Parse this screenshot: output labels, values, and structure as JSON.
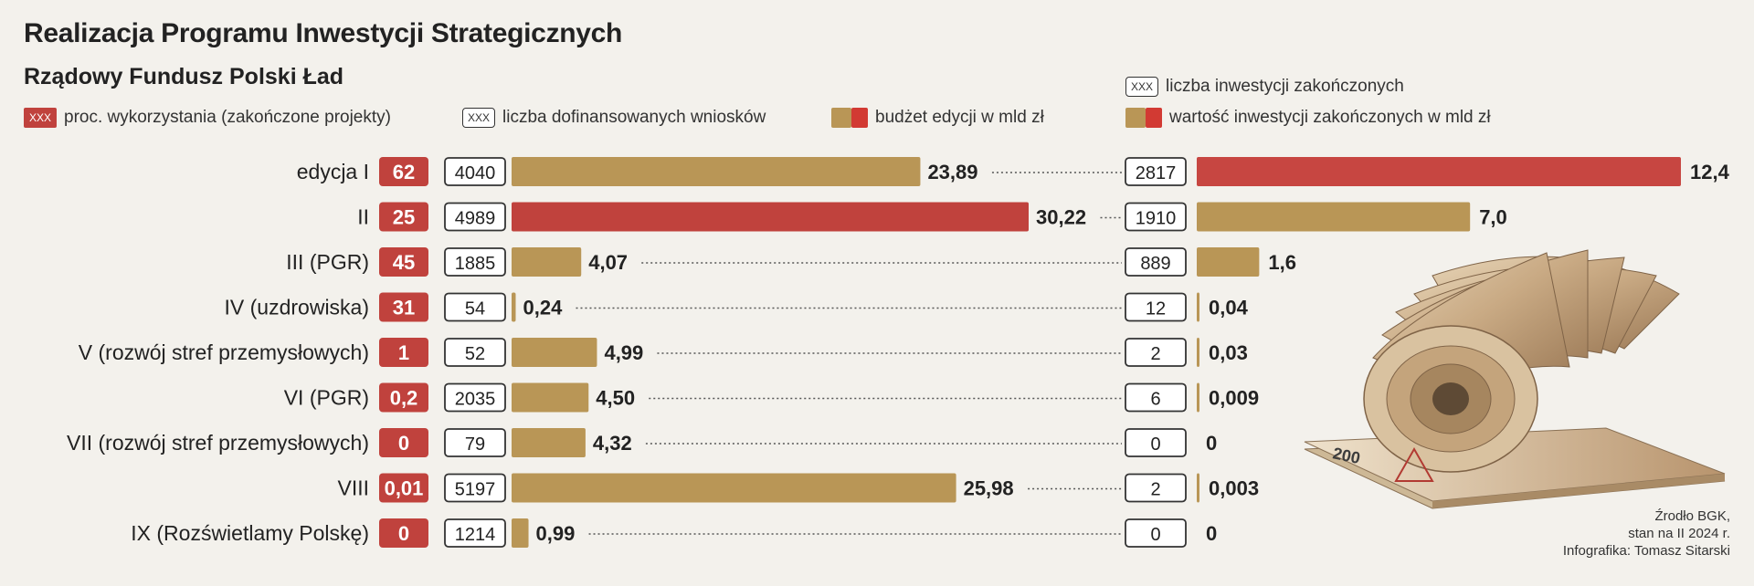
{
  "title": "Realizacja Programu Inwestycji Strategicznych",
  "subtitle": "Rządowy Fundusz Polski Ład",
  "legend": {
    "pct_badge": "XXX",
    "pct_label": "proc. wykorzystania (zakończone projekty)",
    "apps_badge": "XXX",
    "apps_label": "liczba dofinansowanych wniosków",
    "budget_label": "budżet edycji w mld zł",
    "completed_badge": "XXX",
    "completed_label": "liczba inwestycji zakończonych",
    "completed_value_label": "wartość inwestycji zakończonych w mld zł"
  },
  "source": {
    "line1": "Źrodło BGK,",
    "line2": "stan na II 2024 r.",
    "line3": "Infografika: Tomasz Sitarski"
  },
  "colors": {
    "red": "#c0423d",
    "gold": "#b99656",
    "budget_red": "#c0423d",
    "completed_red": "#c74641"
  },
  "chart_data": {
    "type": "bar",
    "categories": [
      "edycja I",
      "II",
      "III (PGR)",
      "IV (uzdrowiska)",
      "V (rozwój stref przemysłowych)",
      "VI (PGR)",
      "VII (rozwój stref przemysłowych)",
      "VIII",
      "IX (Rozświetlamy Polskę)"
    ],
    "pct_used": [
      "62",
      "25",
      "45",
      "31",
      "1",
      "0,2",
      "0",
      "0,01",
      "0"
    ],
    "applications": [
      "4040",
      "4989",
      "1885",
      "54",
      "52",
      "2035",
      "79",
      "5197",
      "1214"
    ],
    "budget_values": [
      23.89,
      30.22,
      4.07,
      0.24,
      4.99,
      4.5,
      4.32,
      25.98,
      0.99
    ],
    "budget_labels": [
      "23,89",
      "30,22",
      "4,07",
      "0,24",
      "4,99",
      "4,50",
      "4,32",
      "25,98",
      "0,99"
    ],
    "budget_highlight": [
      false,
      true,
      false,
      false,
      false,
      false,
      false,
      false,
      false
    ],
    "completed_counts": [
      "2817",
      "1910",
      "889",
      "12",
      "2",
      "6",
      "0",
      "2",
      "0"
    ],
    "completed_values": [
      12.4,
      7.0,
      1.6,
      0.04,
      0.03,
      0.009,
      0,
      0.003,
      0
    ],
    "completed_labels": [
      "12,4",
      "7,0",
      "1,6",
      "0,04",
      "0,03",
      "0,009",
      "0",
      "0,003",
      "0"
    ],
    "completed_highlight": [
      true,
      false,
      false,
      false,
      false,
      false,
      false,
      false,
      false
    ],
    "budget_max": 30.22,
    "completed_max": 12.4
  }
}
